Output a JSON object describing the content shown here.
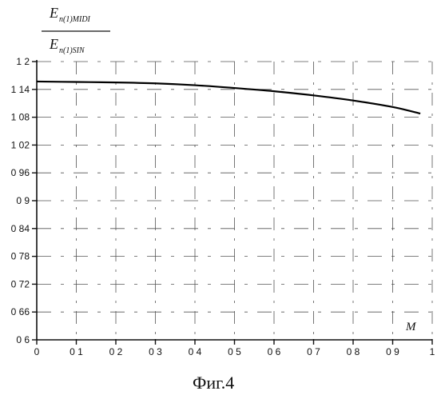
{
  "chart_data": {
    "type": "line",
    "ylabel_numerator": "E",
    "ylabel_numerator_sub": "n(1)MIDI",
    "ylabel_denominator": "E",
    "ylabel_denominator_sub": "n(1)SIN",
    "xlabel": "M",
    "caption": "Фиг.4",
    "xlim": [
      0,
      1
    ],
    "ylim": [
      0.6,
      1.2
    ],
    "x_ticks": [
      0,
      0.1,
      0.2,
      0.3,
      0.4,
      0.5,
      0.6,
      0.7,
      0.8,
      0.9,
      1
    ],
    "x_tick_labels": [
      "0",
      "0 1",
      "0 2",
      "0 3",
      "0 4",
      "0 5",
      "0 6",
      "0 7",
      "0 8",
      "0 9",
      "1"
    ],
    "y_ticks": [
      0.6,
      0.66,
      0.72,
      0.78,
      0.84,
      0.9,
      0.96,
      1.02,
      1.08,
      1.14,
      1.2
    ],
    "y_tick_labels": [
      "0 6",
      "0 66",
      "0 72",
      "0 78",
      "0 84",
      "0 9",
      "0 96",
      "1 02",
      "1 08",
      "1 14",
      "1 2"
    ],
    "grid": "dashed",
    "legend": "none",
    "series": [
      {
        "x": [
          0,
          0.1,
          0.2,
          0.3,
          0.4,
          0.5,
          0.6,
          0.7,
          0.8,
          0.9,
          0.97
        ],
        "y": [
          1.157,
          1.156,
          1.155,
          1.153,
          1.149,
          1.143,
          1.136,
          1.127,
          1.116,
          1.102,
          1.088
        ]
      }
    ]
  }
}
